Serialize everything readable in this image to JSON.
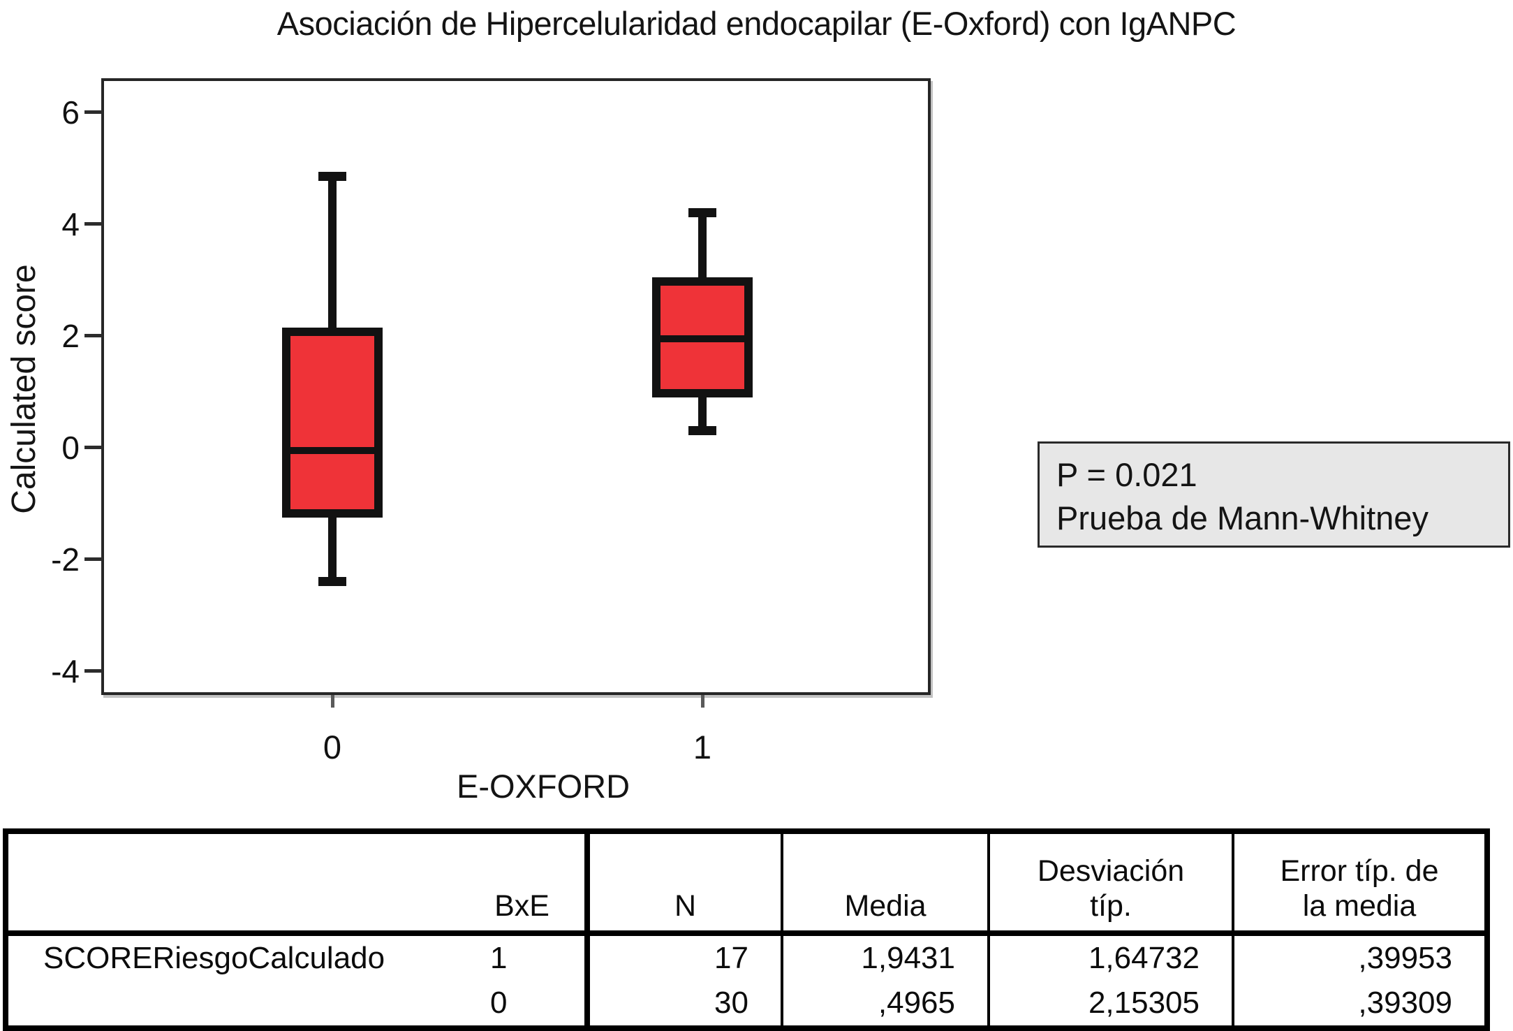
{
  "chart_data": {
    "type": "boxplot",
    "title": "Asociación de Hipercelularidad endocapilar (E-Oxford) con IgANPC",
    "xlabel": "E-OXFORD",
    "ylabel": "Calculated score",
    "categories": [
      "0",
      "1"
    ],
    "yticks": [
      6,
      4,
      2,
      0,
      -2,
      -4
    ],
    "ylim": [
      -4.38,
      6.56
    ],
    "grid": false,
    "legend": false,
    "box_fill_color": "#ef3338",
    "box_line_color": "#121212",
    "boxes": [
      {
        "category": "0",
        "whisker_low": -2.4,
        "q1": -1.25,
        "median": -0.05,
        "q3": 2.15,
        "whisker_high": 4.85
      },
      {
        "category": "1",
        "whisker_low": 0.3,
        "q1": 0.9,
        "median": 1.95,
        "q3": 3.05,
        "whisker_high": 4.2
      }
    ],
    "annotation": {
      "line1": "P = 0.021",
      "line2": "Prueba de Mann-Whitney",
      "bg_color": "#e7e7e7"
    }
  },
  "stats_table": {
    "row_label": "SCORERiesgoCalculado",
    "col_headers": {
      "label": "",
      "bxe": "BxE",
      "n": "N",
      "media": "Media",
      "desv": "Desviación\ntíp.",
      "error": "Error típ. de\nla media"
    },
    "rows": [
      {
        "bxe": "1",
        "n": "17",
        "media": "1,9431",
        "desv": "1,64732",
        "error": ",39953"
      },
      {
        "bxe": "0",
        "n": "30",
        "media": ",4965",
        "desv": "2,15305",
        "error": ",39309"
      }
    ]
  }
}
